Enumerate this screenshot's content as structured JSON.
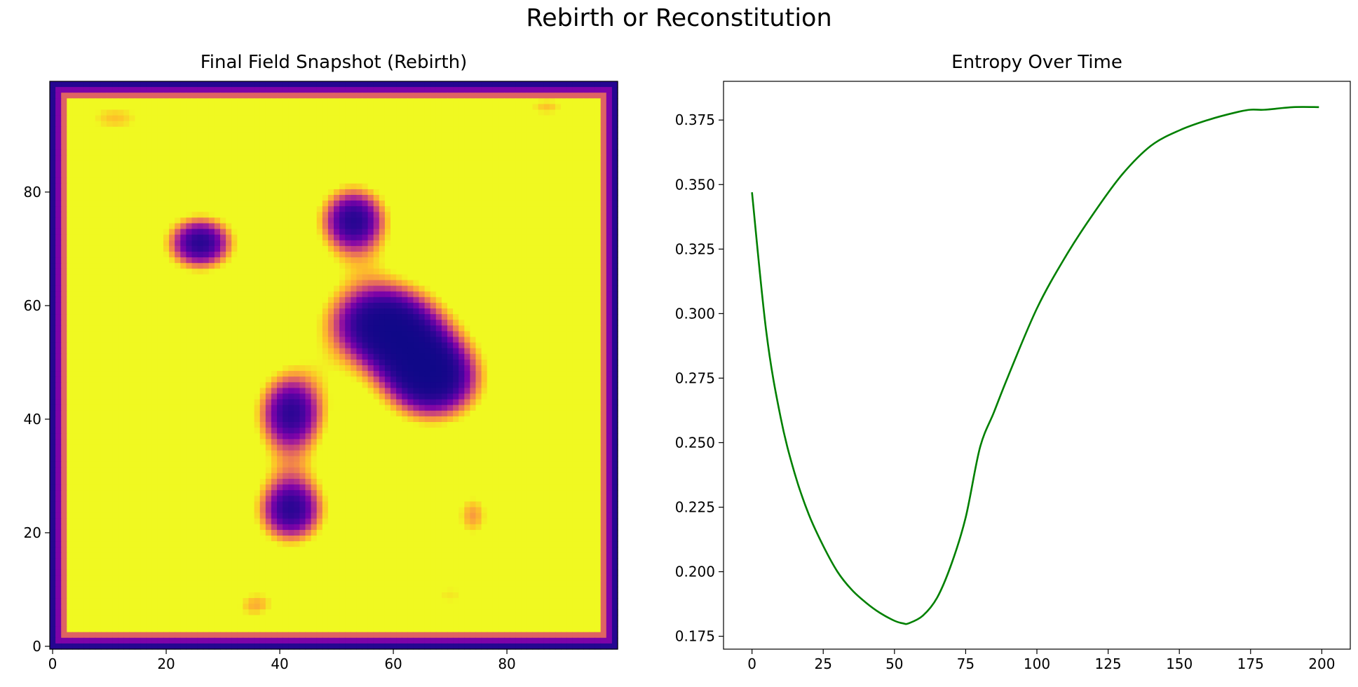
{
  "figure": {
    "title": "Rebirth or Reconstitution"
  },
  "chart_data": [
    {
      "type": "heatmap",
      "title": "Final Field Snapshot (Rebirth)",
      "xlabel": "",
      "ylabel": "",
      "colormap": "plasma",
      "grid_size": [
        100,
        100
      ],
      "xlim": [
        -0.5,
        99.5
      ],
      "ylim": [
        99.5,
        -0.5
      ],
      "xticks": [
        0,
        20,
        40,
        60,
        80
      ],
      "yticks": [
        0,
        20,
        40,
        60,
        80
      ],
      "background_value": 1.0,
      "border_value": 0.05,
      "low_regions": [
        {
          "cx": 26,
          "cy": 28,
          "sx": 5,
          "sy": 4,
          "depth": 0.9
        },
        {
          "cx": 53,
          "cy": 24,
          "sx": 5,
          "sy": 5,
          "depth": 0.9
        },
        {
          "cx": 58,
          "cy": 42,
          "sx": 8,
          "sy": 6,
          "depth": 0.98
        },
        {
          "cx": 67,
          "cy": 52,
          "sx": 7,
          "sy": 6,
          "depth": 0.98
        },
        {
          "cx": 42,
          "cy": 58,
          "sx": 5,
          "sy": 6,
          "depth": 0.88
        },
        {
          "cx": 42,
          "cy": 75,
          "sx": 5,
          "sy": 5,
          "depth": 0.88
        },
        {
          "cx": 74,
          "cy": 76,
          "sx": 3,
          "sy": 4,
          "depth": 0.5
        },
        {
          "cx": 11,
          "cy": 6,
          "sx": 6,
          "sy": 3,
          "depth": 0.45
        },
        {
          "cx": 87,
          "cy": 4,
          "sx": 4,
          "sy": 2,
          "depth": 0.45
        },
        {
          "cx": 36,
          "cy": 92,
          "sx": 4,
          "sy": 3,
          "depth": 0.5
        },
        {
          "cx": 70,
          "cy": 90,
          "sx": 5,
          "sy": 3,
          "depth": 0.4
        }
      ],
      "high_regions": [
        {
          "cx": 41,
          "cy": 99,
          "sx": 4,
          "sy": 3,
          "depth": 0.8
        },
        {
          "cx": 33,
          "cy": 39,
          "sx": 3,
          "sy": 2,
          "depth": 0.7
        }
      ]
    },
    {
      "type": "line",
      "title": "Entropy Over Time",
      "xlabel": "",
      "ylabel": "",
      "xlim": [
        -10,
        210
      ],
      "ylim": [
        0.17,
        0.39
      ],
      "xticks": [
        0,
        25,
        50,
        75,
        100,
        125,
        150,
        175,
        200
      ],
      "yticks": [
        0.175,
        0.2,
        0.225,
        0.25,
        0.275,
        0.3,
        0.325,
        0.35,
        0.375
      ],
      "ytick_labels": [
        "0.175",
        "0.200",
        "0.225",
        "0.250",
        "0.275",
        "0.300",
        "0.325",
        "0.350",
        "0.375"
      ],
      "grid": false,
      "series": [
        {
          "color": "#008000",
          "x": [
            0,
            5,
            10,
            15,
            20,
            25,
            30,
            35,
            40,
            45,
            50,
            53,
            55,
            60,
            65,
            70,
            75,
            80,
            85,
            90,
            100,
            110,
            120,
            130,
            140,
            150,
            160,
            170,
            175,
            180,
            190,
            199
          ],
          "y": [
            0.347,
            0.293,
            0.26,
            0.238,
            0.222,
            0.21,
            0.2,
            0.193,
            0.188,
            0.184,
            0.181,
            0.18,
            0.18,
            0.183,
            0.19,
            0.203,
            0.221,
            0.248,
            0.262,
            0.276,
            0.302,
            0.322,
            0.339,
            0.354,
            0.365,
            0.371,
            0.375,
            0.378,
            0.379,
            0.379,
            0.38,
            0.38
          ]
        }
      ]
    }
  ]
}
